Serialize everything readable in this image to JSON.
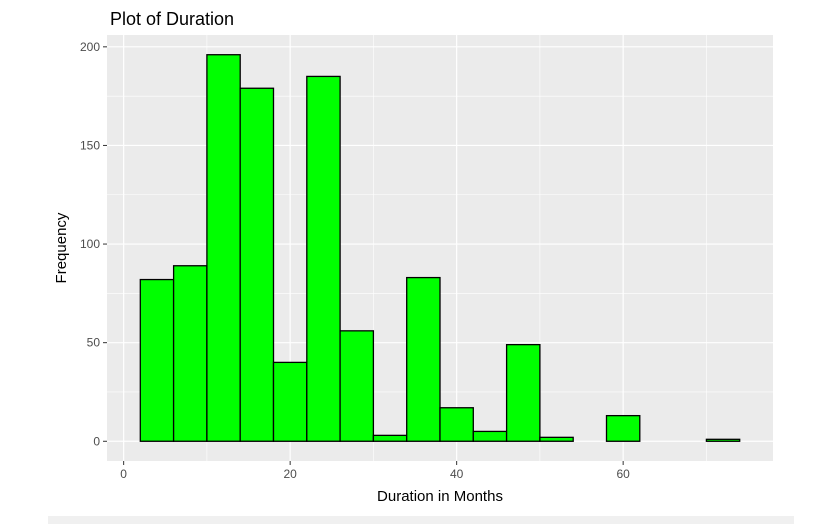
{
  "chart_data": {
    "type": "bar",
    "title": "Plot of Duration",
    "xlabel": "Duration in Months",
    "ylabel": "Frequency",
    "xlim": [
      -2,
      78
    ],
    "ylim": [
      -10,
      206
    ],
    "x_ticks": [
      0,
      20,
      40,
      60
    ],
    "y_ticks": [
      0,
      50,
      100,
      150,
      200
    ],
    "bin_width": 4,
    "bins": [
      {
        "start": 2,
        "end": 6,
        "value": 82
      },
      {
        "start": 6,
        "end": 10,
        "value": 89
      },
      {
        "start": 10,
        "end": 14,
        "value": 196
      },
      {
        "start": 14,
        "end": 18,
        "value": 179
      },
      {
        "start": 18,
        "end": 22,
        "value": 40
      },
      {
        "start": 22,
        "end": 26,
        "value": 185
      },
      {
        "start": 26,
        "end": 30,
        "value": 56
      },
      {
        "start": 30,
        "end": 34,
        "value": 3
      },
      {
        "start": 34,
        "end": 38,
        "value": 83
      },
      {
        "start": 38,
        "end": 42,
        "value": 17
      },
      {
        "start": 42,
        "end": 46,
        "value": 5
      },
      {
        "start": 46,
        "end": 50,
        "value": 49
      },
      {
        "start": 50,
        "end": 54,
        "value": 2
      },
      {
        "start": 54,
        "end": 58,
        "value": 0
      },
      {
        "start": 58,
        "end": 62,
        "value": 13
      },
      {
        "start": 62,
        "end": 66,
        "value": 0
      },
      {
        "start": 66,
        "end": 70,
        "value": 0
      },
      {
        "start": 70,
        "end": 74,
        "value": 1
      }
    ],
    "bar_fill": "#00ff00",
    "bar_stroke": "#000000",
    "panel_background": "#ebebeb",
    "grid_color": "#ffffff",
    "grid": true,
    "legend": "none"
  }
}
